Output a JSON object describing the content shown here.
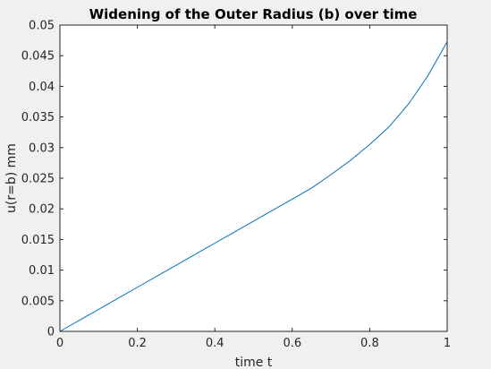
{
  "chart_data": {
    "type": "line",
    "title": "Widening of the Outer Radius (b) over time",
    "xlabel": "time t",
    "ylabel": "u(r=b) mm",
    "xlim": [
      0,
      1
    ],
    "ylim": [
      0,
      0.05
    ],
    "xticks": [
      "0",
      "0.2",
      "0.4",
      "0.6",
      "0.8",
      "1"
    ],
    "yticks": [
      "0",
      "0.005",
      "0.01",
      "0.015",
      "0.02",
      "0.025",
      "0.03",
      "0.035",
      "0.04",
      "0.045",
      "0.05"
    ],
    "grid": false,
    "series": [
      {
        "color": "#0072bd",
        "x": [
          0,
          0.05,
          0.1,
          0.15,
          0.2,
          0.25,
          0.3,
          0.35,
          0.4,
          0.45,
          0.5,
          0.55,
          0.6,
          0.65,
          0.7,
          0.75,
          0.8,
          0.85,
          0.9,
          0.95,
          1.0
        ],
        "y": [
          0,
          0.0018,
          0.0036,
          0.0054,
          0.0072,
          0.009,
          0.0108,
          0.0126,
          0.0144,
          0.0162,
          0.018,
          0.0198,
          0.0216,
          0.0234,
          0.0256,
          0.0279,
          0.0305,
          0.0334,
          0.0371,
          0.0417,
          0.0473
        ]
      }
    ]
  }
}
